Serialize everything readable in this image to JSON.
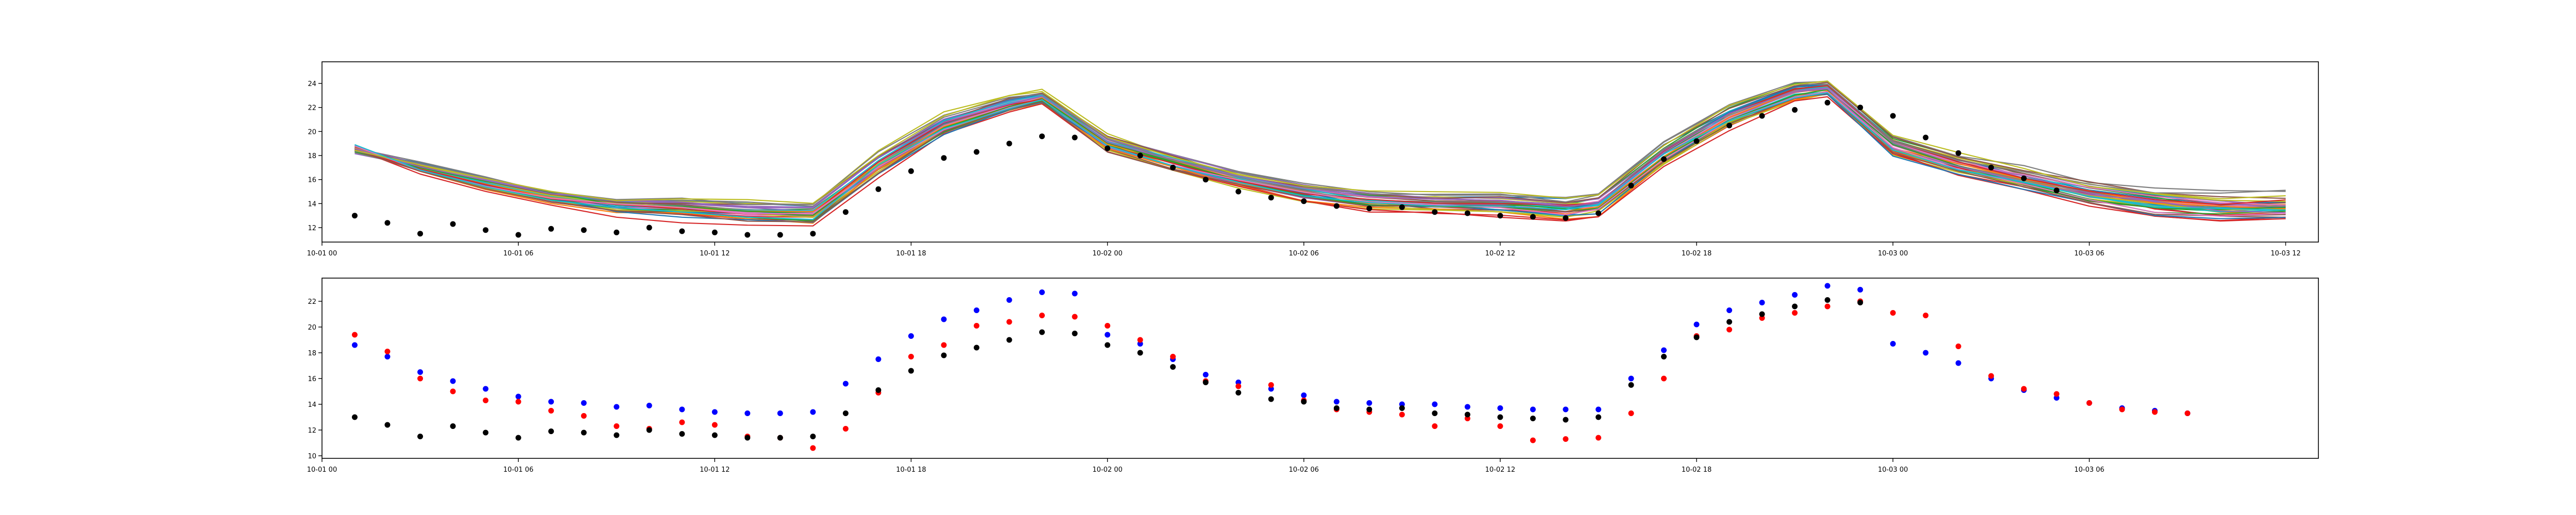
{
  "chart_data": [
    {
      "type": "line",
      "title": "",
      "xlabel": "",
      "ylabel": "",
      "xlim": [
        "2023-10-01 00:00",
        "2023-10-03 13:00"
      ],
      "ylim": [
        10.8,
        25.8
      ],
      "x_ticks": [
        "10-01 00",
        "10-01 06",
        "10-01 12",
        "10-01 18",
        "10-02 00",
        "10-02 06",
        "10-02 12",
        "10-02 18",
        "10-03 00",
        "10-03 06",
        "10-03 12"
      ],
      "y_ticks": [
        "12",
        "14",
        "16",
        "18",
        "20",
        "22",
        "24"
      ],
      "grid": false,
      "legend": "none",
      "ensemble": {
        "count": 40,
        "x": [
          "2023-10-01 01:00",
          "2023-10-01 03:00",
          "2023-10-01 05:00",
          "2023-10-01 07:00",
          "2023-10-01 09:00",
          "2023-10-01 11:00",
          "2023-10-01 13:00",
          "2023-10-01 15:00",
          "2023-10-01 17:00",
          "2023-10-01 19:00",
          "2023-10-01 21:00",
          "2023-10-01 22:00",
          "2023-10-02 00:00",
          "2023-10-02 02:00",
          "2023-10-02 04:00",
          "2023-10-02 06:00",
          "2023-10-02 08:00",
          "2023-10-02 10:00",
          "2023-10-02 12:00",
          "2023-10-02 14:00",
          "2023-10-02 15:00",
          "2023-10-02 17:00",
          "2023-10-02 19:00",
          "2023-10-02 21:00",
          "2023-10-02 22:00",
          "2023-10-03 00:00",
          "2023-10-03 02:00",
          "2023-10-03 04:00",
          "2023-10-03 06:00",
          "2023-10-03 08:00",
          "2023-10-03 10:00",
          "2023-10-03 12:00"
        ],
        "mean": [
          18.5,
          16.9,
          15.6,
          14.5,
          13.8,
          13.6,
          13.3,
          13.2,
          17.3,
          20.5,
          22.2,
          22.8,
          19.0,
          17.4,
          16.0,
          14.9,
          14.2,
          14.0,
          13.9,
          13.5,
          13.8,
          18.0,
          21.2,
          23.2,
          23.5,
          18.8,
          17.2,
          16.0,
          14.8,
          14.0,
          13.6,
          13.6
        ],
        "spread": [
          0.3,
          0.6,
          0.8,
          0.8,
          0.9,
          1.0,
          1.0,
          1.1,
          1.2,
          1.0,
          0.8,
          0.7,
          0.9,
          1.0,
          0.9,
          0.9,
          1.0,
          1.0,
          1.1,
          1.2,
          1.2,
          1.3,
          1.2,
          1.0,
          0.8,
          1.1,
          1.2,
          1.3,
          1.3,
          1.3,
          1.3,
          1.4
        ],
        "colors": [
          "#1f77b4",
          "#ff7f0e",
          "#2ca02c",
          "#d62728",
          "#9467bd",
          "#8c564b",
          "#e377c2",
          "#7f7f7f",
          "#bcbd22",
          "#17becf"
        ]
      },
      "observed": {
        "color": "#000000",
        "x": [
          "2023-10-01 01:00",
          "2023-10-01 02:00",
          "2023-10-01 03:00",
          "2023-10-01 04:00",
          "2023-10-01 05:00",
          "2023-10-01 06:00",
          "2023-10-01 07:00",
          "2023-10-01 08:00",
          "2023-10-01 09:00",
          "2023-10-01 10:00",
          "2023-10-01 11:00",
          "2023-10-01 12:00",
          "2023-10-01 13:00",
          "2023-10-01 14:00",
          "2023-10-01 15:00",
          "2023-10-01 16:00",
          "2023-10-01 17:00",
          "2023-10-01 18:00",
          "2023-10-01 19:00",
          "2023-10-01 20:00",
          "2023-10-01 21:00",
          "2023-10-01 22:00",
          "2023-10-01 23:00",
          "2023-10-02 00:00",
          "2023-10-02 01:00",
          "2023-10-02 02:00",
          "2023-10-02 03:00",
          "2023-10-02 04:00",
          "2023-10-02 05:00",
          "2023-10-02 06:00",
          "2023-10-02 07:00",
          "2023-10-02 08:00",
          "2023-10-02 09:00",
          "2023-10-02 10:00",
          "2023-10-02 11:00",
          "2023-10-02 12:00",
          "2023-10-02 13:00",
          "2023-10-02 14:00",
          "2023-10-02 15:00",
          "2023-10-02 16:00",
          "2023-10-02 17:00",
          "2023-10-02 18:00",
          "2023-10-02 19:00",
          "2023-10-02 20:00",
          "2023-10-02 21:00",
          "2023-10-02 22:00",
          "2023-10-02 23:00",
          "2023-10-03 00:00",
          "2023-10-03 01:00",
          "2023-10-03 02:00",
          "2023-10-03 03:00",
          "2023-10-03 04:00",
          "2023-10-03 05:00"
        ],
        "y": [
          13.0,
          12.4,
          11.5,
          12.3,
          11.8,
          11.4,
          11.9,
          11.8,
          11.6,
          12.0,
          11.7,
          11.6,
          11.4,
          11.4,
          11.5,
          13.3,
          15.2,
          16.7,
          17.8,
          18.3,
          19.0,
          19.6,
          19.5,
          18.6,
          18.0,
          17.0,
          16.0,
          15.0,
          14.5,
          14.2,
          13.8,
          13.6,
          13.7,
          13.3,
          13.2,
          13.0,
          12.9,
          12.8,
          13.2,
          15.5,
          17.7,
          19.2,
          20.5,
          21.3,
          21.8,
          22.4,
          22.0,
          21.3,
          19.5,
          18.2,
          17.0,
          16.1,
          15.1
        ]
      }
    },
    {
      "type": "scatter",
      "title": "",
      "xlabel": "",
      "ylabel": "",
      "xlim": [
        "2023-10-01 00:00",
        "2023-10-03 13:00"
      ],
      "ylim": [
        9.8,
        23.8
      ],
      "x_ticks": [
        "10-01 00",
        "10-01 06",
        "10-01 12",
        "10-01 18",
        "10-02 00",
        "10-02 06",
        "10-02 12",
        "10-02 18",
        "10-03 00",
        "10-03 06"
      ],
      "y_ticks": [
        "10",
        "12",
        "14",
        "16",
        "18",
        "20",
        "22"
      ],
      "grid": false,
      "legend": "none",
      "x": [
        "2023-10-01 01:00",
        "2023-10-01 02:00",
        "2023-10-01 03:00",
        "2023-10-01 04:00",
        "2023-10-01 05:00",
        "2023-10-01 06:00",
        "2023-10-01 07:00",
        "2023-10-01 08:00",
        "2023-10-01 09:00",
        "2023-10-01 10:00",
        "2023-10-01 11:00",
        "2023-10-01 12:00",
        "2023-10-01 13:00",
        "2023-10-01 14:00",
        "2023-10-01 15:00",
        "2023-10-01 16:00",
        "2023-10-01 17:00",
        "2023-10-01 18:00",
        "2023-10-01 19:00",
        "2023-10-01 20:00",
        "2023-10-01 21:00",
        "2023-10-01 22:00",
        "2023-10-01 23:00",
        "2023-10-02 00:00",
        "2023-10-02 01:00",
        "2023-10-02 02:00",
        "2023-10-02 03:00",
        "2023-10-02 04:00",
        "2023-10-02 05:00",
        "2023-10-02 06:00",
        "2023-10-02 07:00",
        "2023-10-02 08:00",
        "2023-10-02 09:00",
        "2023-10-02 10:00",
        "2023-10-02 11:00",
        "2023-10-02 12:00",
        "2023-10-02 13:00",
        "2023-10-02 14:00",
        "2023-10-02 15:00",
        "2023-10-02 16:00",
        "2023-10-02 17:00",
        "2023-10-02 18:00",
        "2023-10-02 19:00",
        "2023-10-02 20:00",
        "2023-10-02 21:00",
        "2023-10-02 22:00",
        "2023-10-02 23:00",
        "2023-10-03 00:00",
        "2023-10-03 01:00",
        "2023-10-03 02:00",
        "2023-10-03 03:00",
        "2023-10-03 04:00",
        "2023-10-03 05:00",
        "2023-10-03 06:00",
        "2023-10-03 07:00",
        "2023-10-03 08:00",
        "2023-10-03 09:00"
      ],
      "series": [
        {
          "color": "#0000ff",
          "y": [
            18.6,
            17.7,
            16.5,
            15.8,
            15.2,
            14.6,
            14.2,
            14.1,
            13.8,
            13.9,
            13.6,
            13.4,
            13.3,
            13.3,
            13.4,
            15.6,
            17.5,
            19.3,
            20.6,
            21.3,
            22.1,
            22.7,
            22.6,
            19.4,
            18.7,
            17.5,
            16.3,
            15.7,
            15.2,
            14.7,
            14.2,
            14.1,
            14.0,
            14.0,
            13.8,
            13.7,
            13.6,
            13.6,
            13.6,
            16.0,
            18.2,
            20.2,
            21.3,
            21.9,
            22.5,
            23.2,
            22.9,
            18.7,
            18.0,
            17.2,
            16.0,
            15.1,
            14.5,
            14.1,
            13.7,
            13.5,
            13.3
          ]
        },
        {
          "color": "#ff0000",
          "y": [
            19.4,
            18.1,
            16.0,
            15.0,
            14.3,
            14.2,
            13.5,
            13.1,
            12.3,
            12.1,
            12.6,
            12.4,
            11.5,
            11.4,
            10.6,
            12.1,
            14.9,
            17.7,
            18.6,
            20.1,
            20.4,
            20.9,
            20.8,
            20.1,
            19.0,
            17.7,
            15.8,
            15.4,
            15.5,
            14.3,
            13.6,
            13.4,
            13.2,
            12.3,
            12.9,
            12.3,
            11.2,
            11.3,
            11.4,
            13.3,
            16.0,
            19.3,
            19.8,
            20.7,
            21.1,
            21.6,
            22.0,
            21.1,
            20.9,
            18.5,
            16.2,
            15.2,
            14.8,
            14.1,
            13.6,
            13.4,
            13.3
          ]
        },
        {
          "color": "#000000",
          "y": [
            13.0,
            12.4,
            11.5,
            12.3,
            11.8,
            11.4,
            11.9,
            11.8,
            11.6,
            12.0,
            11.7,
            11.6,
            11.4,
            11.4,
            11.5,
            13.3,
            15.1,
            16.6,
            17.8,
            18.4,
            19.0,
            19.6,
            19.5,
            18.6,
            18.0,
            16.9,
            15.7,
            14.9,
            14.4,
            14.2,
            13.7,
            13.6,
            13.7,
            13.3,
            13.2,
            13.0,
            12.9,
            12.8,
            13.0,
            15.5,
            17.7,
            19.2,
            20.4,
            21.0,
            21.6,
            22.1,
            21.9,
            null,
            null,
            null,
            null,
            null,
            null,
            null,
            null,
            null,
            null
          ]
        }
      ]
    }
  ]
}
